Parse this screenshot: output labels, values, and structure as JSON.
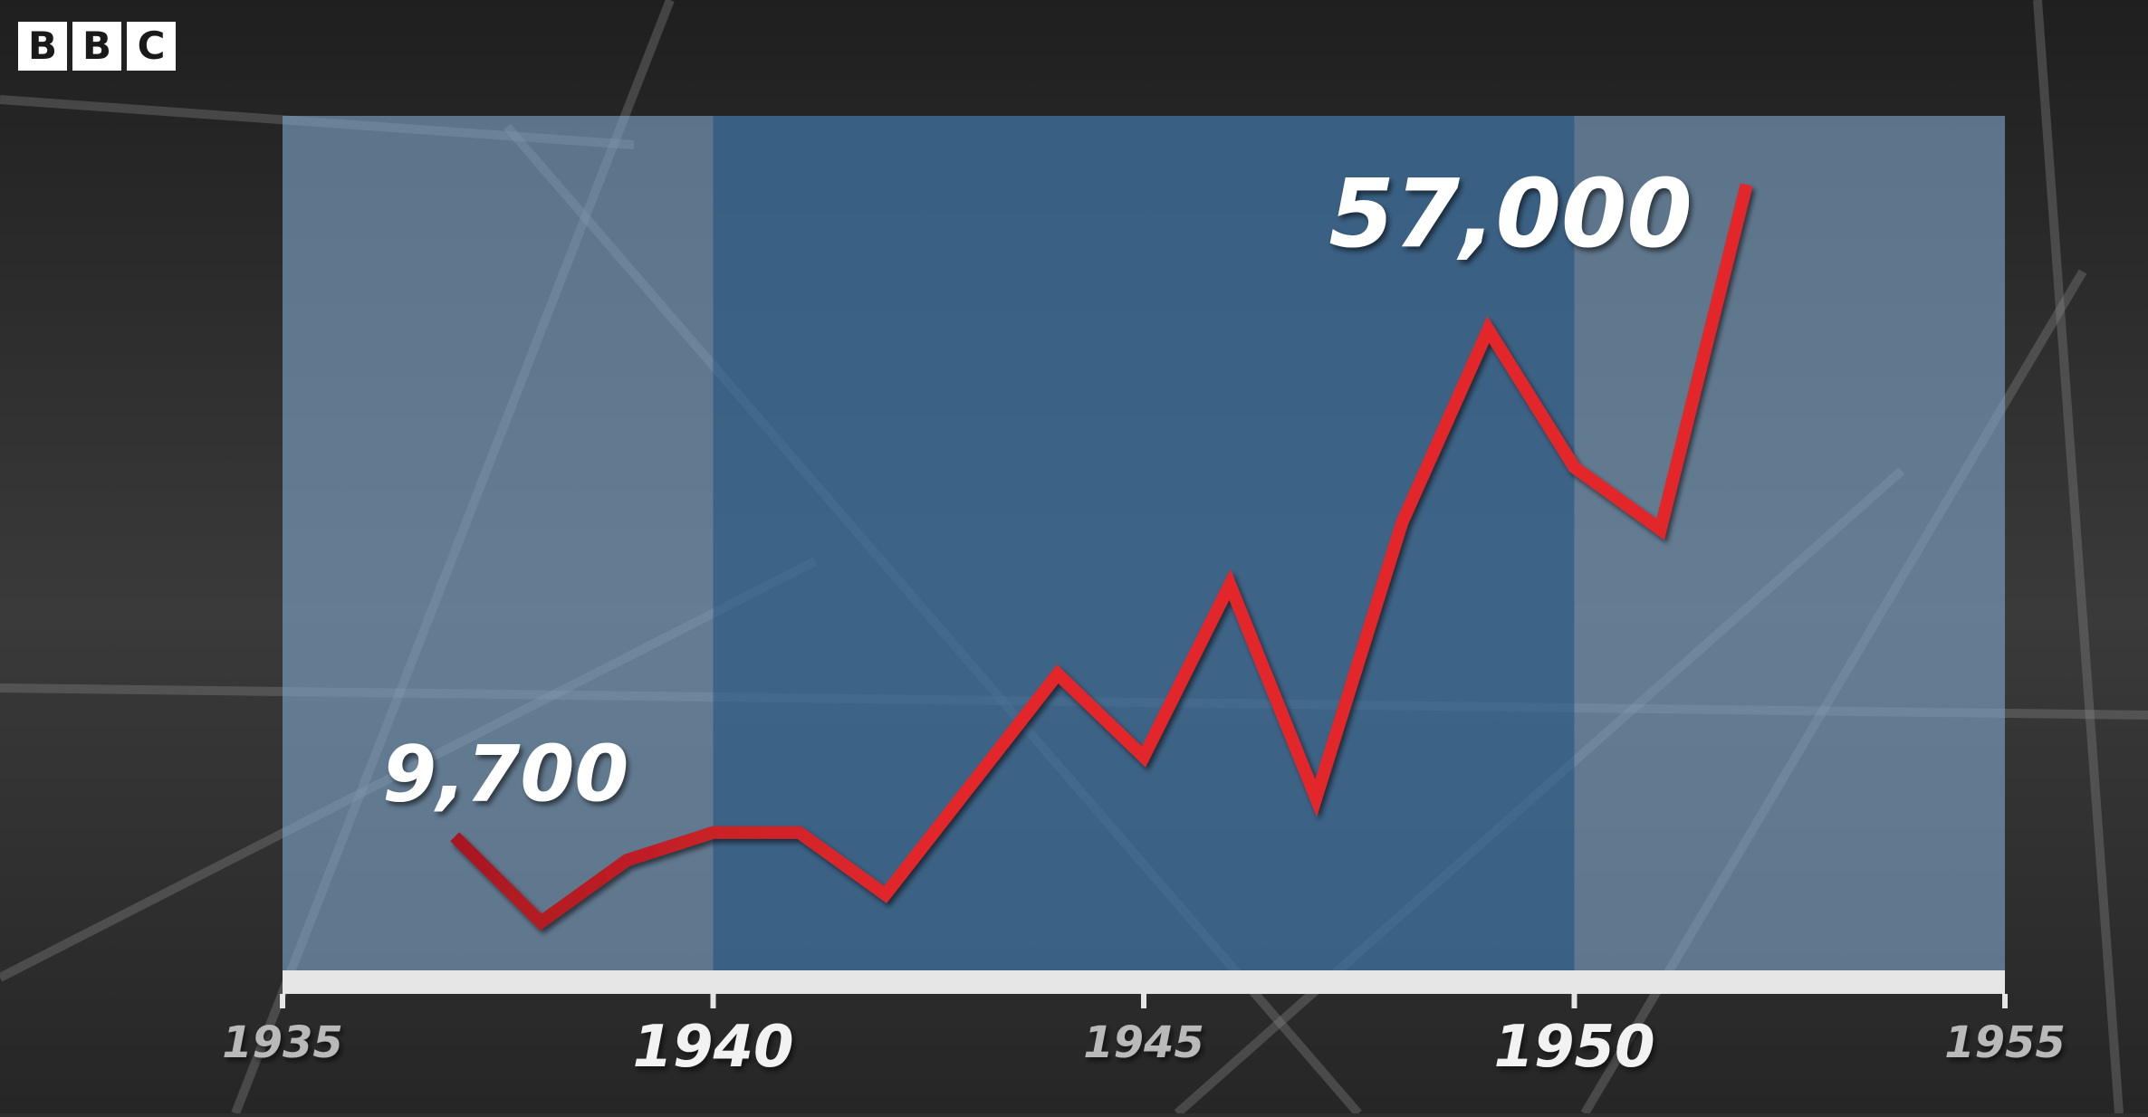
{
  "logo": {
    "letters": [
      "B",
      "B",
      "C"
    ]
  },
  "colors": {
    "line": "#e2282c",
    "line_start": "#a81820",
    "band_light": "#7fa6c9",
    "band_dark": "#3f6f9c",
    "axis": "#e6e6e6",
    "label": "#ffffff"
  },
  "chart_data": {
    "type": "line",
    "title": "",
    "xlabel": "",
    "ylabel": "",
    "xlim": [
      1935,
      1955
    ],
    "ylim": [
      0,
      62000
    ],
    "x_ticks": [
      {
        "value": 1935,
        "label": "1935",
        "emphasis": false
      },
      {
        "value": 1940,
        "label": "1940",
        "emphasis": true
      },
      {
        "value": 1945,
        "label": "1945",
        "emphasis": false
      },
      {
        "value": 1950,
        "label": "1950",
        "emphasis": true
      },
      {
        "value": 1955,
        "label": "1955",
        "emphasis": false
      }
    ],
    "shaded_periods": [
      {
        "from": 1935,
        "to": 1940,
        "shade": "light"
      },
      {
        "from": 1940,
        "to": 1950,
        "shade": "dark"
      },
      {
        "from": 1950,
        "to": 1955,
        "shade": "light"
      }
    ],
    "series": [
      {
        "x": [
          1937,
          1938,
          1939,
          1940,
          1941,
          1942,
          1943,
          1944,
          1945,
          1946,
          1947,
          1948,
          1949,
          1950,
          1951,
          1952
        ],
        "values": [
          9700,
          3500,
          8000,
          10000,
          10000,
          5500,
          13500,
          21500,
          15500,
          28000,
          12500,
          32500,
          46500,
          36500,
          32000,
          57000
        ]
      }
    ],
    "annotations": [
      {
        "text": "9,700",
        "x": 1937,
        "y": 9700,
        "anchor": "start-value"
      },
      {
        "text": "57,000",
        "x": 1952,
        "y": 57000,
        "anchor": "end-value"
      }
    ],
    "grid": false,
    "legend": "none"
  }
}
